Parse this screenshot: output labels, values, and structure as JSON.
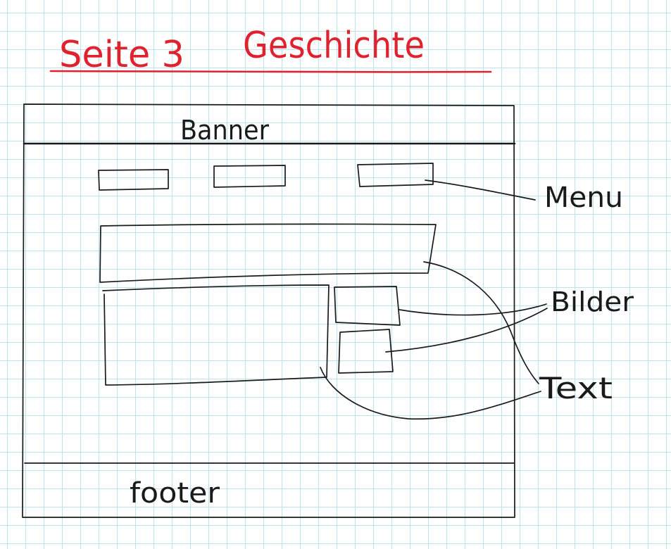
{
  "heading": {
    "page": "Seite 3",
    "title": "Geschichte",
    "color": "#e0222e"
  },
  "wireframe": {
    "banner": "Banner",
    "footer": "footer"
  },
  "annotations": {
    "menu": "Menu",
    "images": "Bilder",
    "text": "Text"
  },
  "colors": {
    "ink": "#1a1a1a",
    "grid": "#bfe3ee",
    "paper": "#ffffff"
  }
}
